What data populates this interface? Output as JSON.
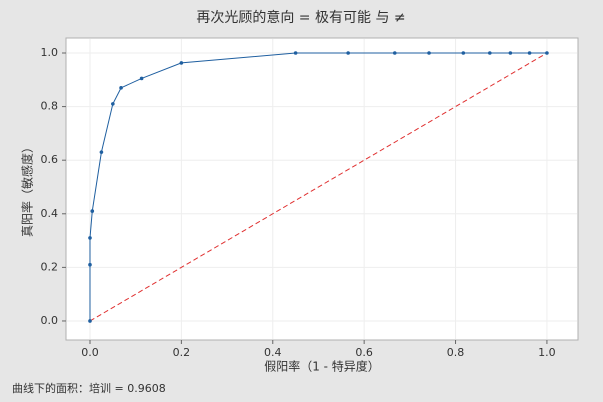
{
  "chart_data": {
    "type": "line",
    "title": "再次光顾的意向 = 极有可能 与 ≠",
    "x_label": "假阳率（1 - 特异度）",
    "y_label": "真阳率（敏感度）",
    "annotation": "曲线下的面积：培训 = 0.9608",
    "series": [
      {
        "color": "#1f5fa0",
        "x": [
          0,
          0,
          0,
          0.005,
          0.025,
          0.05,
          0.068,
          0.113,
          0.2,
          0.45,
          0.565,
          0.667,
          0.742,
          0.817,
          0.875,
          0.92,
          0.962,
          1
        ],
        "values": [
          0,
          0.21,
          0.31,
          0.41,
          0.63,
          0.81,
          0.87,
          0.905,
          0.963,
          1,
          1,
          1,
          1,
          1,
          1,
          1,
          1,
          1
        ]
      }
    ],
    "reference_line": {
      "color": "#e03030",
      "x": [
        0,
        1
      ],
      "values": [
        0,
        1
      ]
    },
    "xlim": [
      -0.0525,
      1.068
    ],
    "ylim": [
      -0.071,
      1.056
    ],
    "xticks": [
      {
        "value": 0,
        "label": "0.0"
      },
      {
        "value": 0.2,
        "label": "0.2"
      },
      {
        "value": 0.4,
        "label": "0.4"
      },
      {
        "value": 0.6,
        "label": "0.6"
      },
      {
        "value": 0.8,
        "label": "0.8"
      },
      {
        "value": 1,
        "label": "1.0"
      }
    ],
    "yticks": [
      {
        "value": 0,
        "label": "0.0"
      },
      {
        "value": 0.2,
        "label": "0.2"
      },
      {
        "value": 0.4,
        "label": "0.4"
      },
      {
        "value": 0.6,
        "label": "0.6"
      },
      {
        "value": 0.8,
        "label": "0.8"
      },
      {
        "value": 1,
        "label": "1.0"
      }
    ],
    "grid": true
  }
}
